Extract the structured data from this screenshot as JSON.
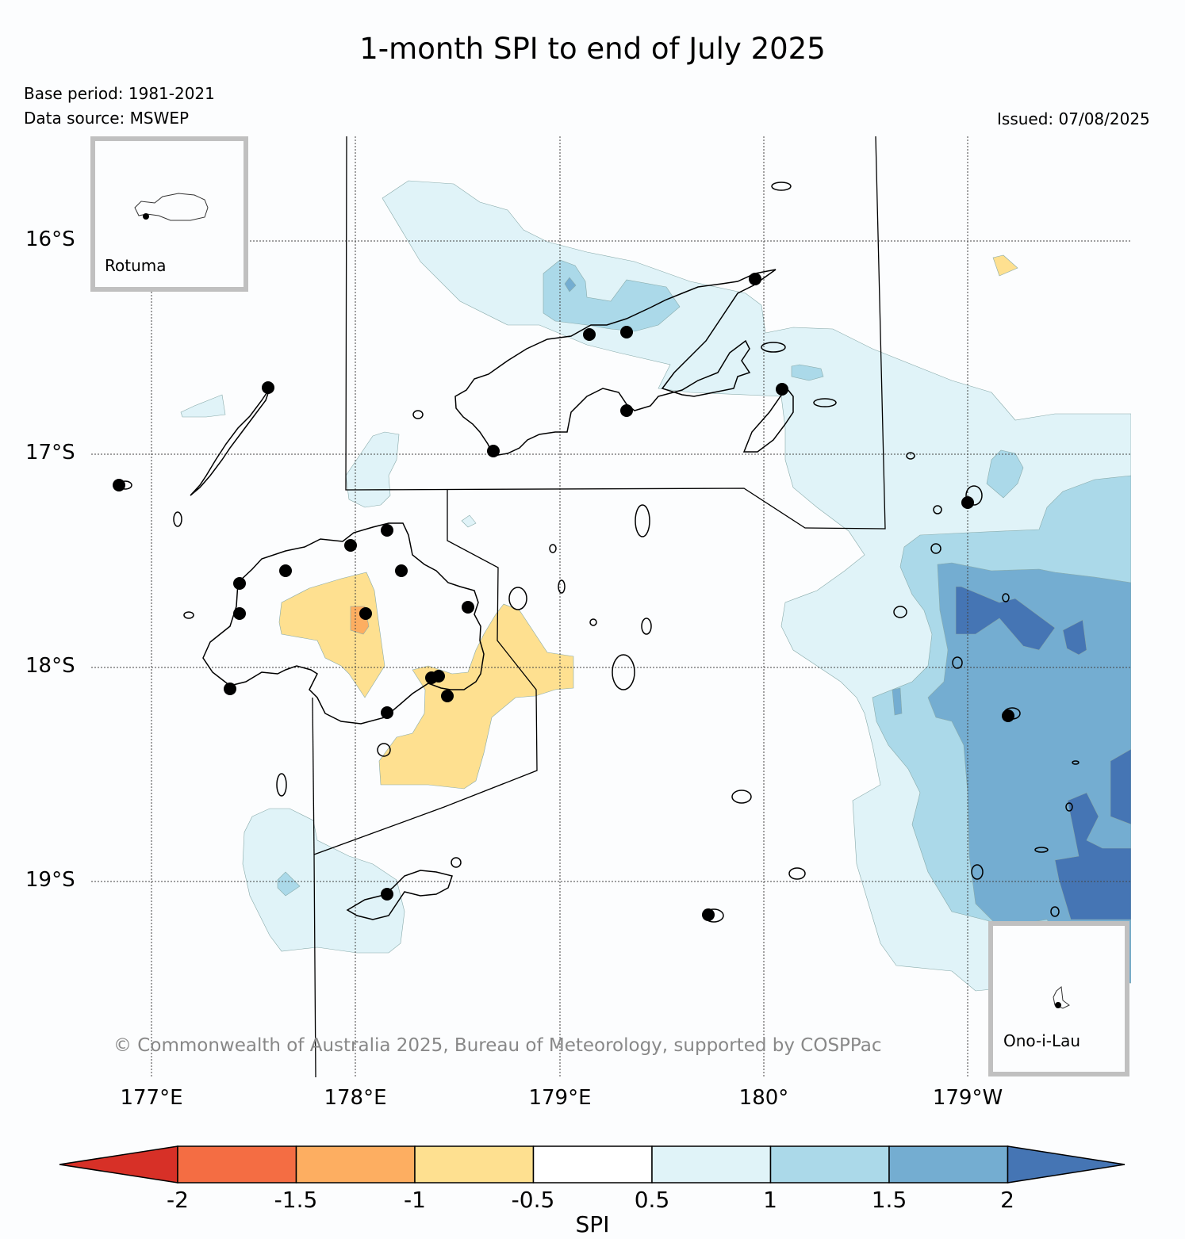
{
  "title": "1-month SPI to end of July 2025",
  "base_period": "Base period: 1981-2021",
  "data_source": "Data source: MSWEP",
  "issued": "Issued: 07/08/2025",
  "copyright": "© Commonwealth of Australia 2025, Bureau of Meteorology, supported by COSPPac",
  "axes": {
    "lat_ticks": [
      "16°S",
      "17°S",
      "18°S",
      "19°S"
    ],
    "lon_ticks": [
      "177°E",
      "178°E",
      "179°E",
      "180°",
      "179°W"
    ]
  },
  "insets": {
    "rotuma": "Rotuma",
    "ono": "Ono-i-Lau"
  },
  "colorbar": {
    "title": "SPI",
    "ticks": [
      "-2",
      "-1.5",
      "-1",
      "-0.5",
      "0.5",
      "1",
      "1.5",
      "2"
    ],
    "colors": [
      "#d73027",
      "#f46d43",
      "#fdae61",
      "#fee090",
      "#ffffff",
      "#e0f3f8",
      "#abd9e9",
      "#74add1",
      "#4575b4"
    ]
  },
  "colors": {
    "frame": "#c0c0c0",
    "copyright": "#888888",
    "background": "#fcfdfe"
  }
}
